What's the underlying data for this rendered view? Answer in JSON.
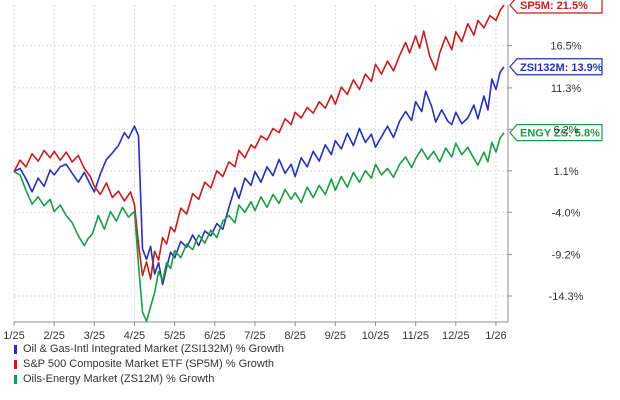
{
  "chart_data": {
    "type": "line",
    "x_tick_labels": [
      "1/25",
      "2/25",
      "3/25",
      "4/25",
      "5/25",
      "6/25",
      "7/25",
      "8/25",
      "9/25",
      "10/25",
      "11/25",
      "12/25",
      "1/26"
    ],
    "y_tick_labels": [
      "16.5%",
      "11.3%",
      "6.2%",
      "1.1%",
      "-4.0%",
      "-9.2%",
      "-14.3%"
    ],
    "y_ticks": [
      16.5,
      11.3,
      6.2,
      1.1,
      -4.0,
      -9.2,
      -14.3
    ],
    "ylim": [
      -17.5,
      21.5
    ],
    "xlim": [
      0,
      12.3
    ],
    "grid": true,
    "legend_position": "bottom-left",
    "series": [
      {
        "name": "Oil & Gas-Intl Integrated Market (ZSI132M) % Growth",
        "end_label": "ZSI132M: 13.9%",
        "color": "#2432b5",
        "values": [
          [
            0,
            1.0
          ],
          [
            0.15,
            1.4
          ],
          [
            0.3,
            0.1
          ],
          [
            0.45,
            -1.5
          ],
          [
            0.6,
            0.2
          ],
          [
            0.75,
            -0.8
          ],
          [
            0.9,
            1.2
          ],
          [
            1.0,
            0.6
          ],
          [
            1.15,
            1.6
          ],
          [
            1.3,
            1.9
          ],
          [
            1.45,
            0.8
          ],
          [
            1.6,
            -0.3
          ],
          [
            1.75,
            0.9
          ],
          [
            1.9,
            -0.6
          ],
          [
            2.0,
            -1.5
          ],
          [
            2.15,
            0.7
          ],
          [
            2.3,
            2.5
          ],
          [
            2.45,
            3.3
          ],
          [
            2.6,
            4.2
          ],
          [
            2.75,
            5.8
          ],
          [
            2.85,
            5.1
          ],
          [
            3.0,
            6.6
          ],
          [
            3.1,
            5.4
          ],
          [
            3.2,
            -8.5
          ],
          [
            3.3,
            -9.8
          ],
          [
            3.4,
            -8.2
          ],
          [
            3.5,
            -11.6
          ],
          [
            3.6,
            -10.2
          ],
          [
            3.7,
            -12.9
          ],
          [
            3.8,
            -10.8
          ],
          [
            3.9,
            -8.9
          ],
          [
            4.0,
            -9.6
          ],
          [
            4.15,
            -7.6
          ],
          [
            4.3,
            -8.3
          ],
          [
            4.45,
            -6.8
          ],
          [
            4.6,
            -8.1
          ],
          [
            4.75,
            -6.3
          ],
          [
            4.9,
            -6.9
          ],
          [
            5.05,
            -5.4
          ],
          [
            5.2,
            -6.1
          ],
          [
            5.35,
            -3.4
          ],
          [
            5.5,
            -1.0
          ],
          [
            5.6,
            -2.3
          ],
          [
            5.75,
            0.2
          ],
          [
            5.9,
            -0.7
          ],
          [
            6.0,
            1.0
          ],
          [
            6.15,
            -0.3
          ],
          [
            6.3,
            1.6
          ],
          [
            6.45,
            0.5
          ],
          [
            6.6,
            2.5
          ],
          [
            6.75,
            0.8
          ],
          [
            6.9,
            1.9
          ],
          [
            7.0,
            0.4
          ],
          [
            7.15,
            2.7
          ],
          [
            7.3,
            1.6
          ],
          [
            7.45,
            3.5
          ],
          [
            7.6,
            2.3
          ],
          [
            7.75,
            4.3
          ],
          [
            7.9,
            3.1
          ],
          [
            8.0,
            4.8
          ],
          [
            8.15,
            3.8
          ],
          [
            8.3,
            5.7
          ],
          [
            8.45,
            4.2
          ],
          [
            8.6,
            6.3
          ],
          [
            8.75,
            4.6
          ],
          [
            8.9,
            5.6
          ],
          [
            9.0,
            4.0
          ],
          [
            9.15,
            5.3
          ],
          [
            9.3,
            6.6
          ],
          [
            9.45,
            5.2
          ],
          [
            9.6,
            7.2
          ],
          [
            9.75,
            8.4
          ],
          [
            9.9,
            7.3
          ],
          [
            10.0,
            9.6
          ],
          [
            10.15,
            8.4
          ],
          [
            10.25,
            10.9
          ],
          [
            10.4,
            9.0
          ],
          [
            10.5,
            7.1
          ],
          [
            10.65,
            8.6
          ],
          [
            10.8,
            7.2
          ],
          [
            10.9,
            6.8
          ],
          [
            11.0,
            8.3
          ],
          [
            11.15,
            6.9
          ],
          [
            11.3,
            7.6
          ],
          [
            11.45,
            9.2
          ],
          [
            11.55,
            7.5
          ],
          [
            11.7,
            10.3
          ],
          [
            11.8,
            8.6
          ],
          [
            11.9,
            12.4
          ],
          [
            12.0,
            11.1
          ],
          [
            12.1,
            13.2
          ],
          [
            12.2,
            13.9
          ]
        ]
      },
      {
        "name": "S&P 500 Composite Market ETF (SP5M) % Growth",
        "end_label": "SP5M: 21.5%",
        "color": "#c51e1e",
        "values": [
          [
            0,
            1.0
          ],
          [
            0.15,
            2.4
          ],
          [
            0.3,
            1.6
          ],
          [
            0.45,
            3.2
          ],
          [
            0.6,
            2.3
          ],
          [
            0.75,
            3.6
          ],
          [
            0.9,
            2.7
          ],
          [
            1.0,
            3.5
          ],
          [
            1.15,
            2.4
          ],
          [
            1.3,
            3.4
          ],
          [
            1.45,
            2.2
          ],
          [
            1.6,
            3.0
          ],
          [
            1.75,
            1.4
          ],
          [
            1.9,
            0.4
          ],
          [
            2.0,
            -0.8
          ],
          [
            2.15,
            -1.8
          ],
          [
            2.3,
            -0.4
          ],
          [
            2.45,
            -2.2
          ],
          [
            2.6,
            -1.4
          ],
          [
            2.75,
            -2.6
          ],
          [
            2.9,
            -1.5
          ],
          [
            3.0,
            -3.1
          ],
          [
            3.1,
            -7.9
          ],
          [
            3.2,
            -11.8
          ],
          [
            3.3,
            -10.1
          ],
          [
            3.4,
            -12.2
          ],
          [
            3.5,
            -8.8
          ],
          [
            3.6,
            -9.9
          ],
          [
            3.7,
            -7.1
          ],
          [
            3.8,
            -7.9
          ],
          [
            3.9,
            -5.8
          ],
          [
            4.0,
            -6.4
          ],
          [
            4.15,
            -3.5
          ],
          [
            4.3,
            -4.2
          ],
          [
            4.45,
            -1.7
          ],
          [
            4.6,
            -2.4
          ],
          [
            4.75,
            -0.3
          ],
          [
            4.9,
            -1.0
          ],
          [
            5.05,
            1.1
          ],
          [
            5.2,
            0.4
          ],
          [
            5.35,
            2.2
          ],
          [
            5.5,
            1.6
          ],
          [
            5.6,
            3.6
          ],
          [
            5.75,
            2.7
          ],
          [
            5.9,
            4.3
          ],
          [
            6.0,
            3.9
          ],
          [
            6.15,
            5.4
          ],
          [
            6.3,
            4.9
          ],
          [
            6.45,
            6.3
          ],
          [
            6.6,
            5.8
          ],
          [
            6.75,
            7.5
          ],
          [
            6.9,
            6.8
          ],
          [
            7.0,
            8.3
          ],
          [
            7.15,
            7.6
          ],
          [
            7.3,
            8.9
          ],
          [
            7.45,
            8.2
          ],
          [
            7.6,
            9.6
          ],
          [
            7.75,
            8.8
          ],
          [
            7.9,
            10.4
          ],
          [
            8.0,
            9.3
          ],
          [
            8.15,
            11.4
          ],
          [
            8.3,
            10.5
          ],
          [
            8.45,
            12.3
          ],
          [
            8.6,
            11.1
          ],
          [
            8.75,
            13.0
          ],
          [
            8.9,
            12.1
          ],
          [
            9.0,
            14.2
          ],
          [
            9.15,
            13.0
          ],
          [
            9.3,
            14.6
          ],
          [
            9.45,
            13.4
          ],
          [
            9.6,
            15.3
          ],
          [
            9.75,
            16.9
          ],
          [
            9.85,
            15.6
          ],
          [
            10.0,
            17.7
          ],
          [
            10.1,
            16.2
          ],
          [
            10.2,
            18.3
          ],
          [
            10.35,
            15.2
          ],
          [
            10.5,
            13.5
          ],
          [
            10.6,
            15.6
          ],
          [
            10.75,
            17.6
          ],
          [
            10.9,
            16.0
          ],
          [
            11.0,
            18.2
          ],
          [
            11.15,
            17.0
          ],
          [
            11.3,
            19.2
          ],
          [
            11.45,
            17.8
          ],
          [
            11.55,
            19.6
          ],
          [
            11.7,
            18.7
          ],
          [
            11.85,
            20.2
          ],
          [
            12.0,
            19.6
          ],
          [
            12.1,
            20.8
          ],
          [
            12.2,
            21.5
          ]
        ]
      },
      {
        "name": "Oils-Energy Market (ZS12M) % Growth",
        "end_label": "ENGY ZS: 5.8%",
        "color": "#1f9a45",
        "values": [
          [
            0,
            1.0
          ],
          [
            0.15,
            0.6
          ],
          [
            0.3,
            -1.3
          ],
          [
            0.45,
            -3.0
          ],
          [
            0.6,
            -2.1
          ],
          [
            0.75,
            -3.2
          ],
          [
            0.9,
            -2.4
          ],
          [
            1.0,
            -3.9
          ],
          [
            1.15,
            -3.1
          ],
          [
            1.3,
            -4.4
          ],
          [
            1.45,
            -5.3
          ],
          [
            1.6,
            -6.9
          ],
          [
            1.75,
            -8.1
          ],
          [
            1.85,
            -7.2
          ],
          [
            1.95,
            -6.7
          ],
          [
            2.1,
            -4.4
          ],
          [
            2.25,
            -6.1
          ],
          [
            2.4,
            -3.9
          ],
          [
            2.55,
            -5.1
          ],
          [
            2.7,
            -3.4
          ],
          [
            2.85,
            -4.6
          ],
          [
            3.0,
            -3.9
          ],
          [
            3.1,
            -10.5
          ],
          [
            3.2,
            -16.3
          ],
          [
            3.3,
            -17.4
          ],
          [
            3.4,
            -15.6
          ],
          [
            3.5,
            -13.9
          ],
          [
            3.6,
            -11.3
          ],
          [
            3.7,
            -12.4
          ],
          [
            3.8,
            -10.2
          ],
          [
            3.9,
            -10.9
          ],
          [
            4.0,
            -8.7
          ],
          [
            4.15,
            -9.6
          ],
          [
            4.3,
            -7.9
          ],
          [
            4.45,
            -8.6
          ],
          [
            4.6,
            -6.8
          ],
          [
            4.75,
            -7.8
          ],
          [
            4.9,
            -6.2
          ],
          [
            5.05,
            -7.1
          ],
          [
            5.2,
            -5.1
          ],
          [
            5.35,
            -4.4
          ],
          [
            5.5,
            -5.3
          ],
          [
            5.6,
            -3.1
          ],
          [
            5.75,
            -4.0
          ],
          [
            5.9,
            -2.7
          ],
          [
            6.0,
            -3.8
          ],
          [
            6.15,
            -2.1
          ],
          [
            6.3,
            -3.4
          ],
          [
            6.45,
            -1.8
          ],
          [
            6.6,
            -2.9
          ],
          [
            6.75,
            -1.2
          ],
          [
            6.9,
            -2.4
          ],
          [
            7.0,
            -1.6
          ],
          [
            7.15,
            -2.8
          ],
          [
            7.3,
            -0.9
          ],
          [
            7.45,
            -2.2
          ],
          [
            7.6,
            -0.7
          ],
          [
            7.75,
            -1.8
          ],
          [
            7.9,
            0.1
          ],
          [
            8.0,
            -1.3
          ],
          [
            8.15,
            0.4
          ],
          [
            8.3,
            -0.9
          ],
          [
            8.45,
            0.9
          ],
          [
            8.6,
            -0.3
          ],
          [
            8.75,
            1.1
          ],
          [
            8.9,
            0.2
          ],
          [
            9.0,
            1.9
          ],
          [
            9.15,
            0.6
          ],
          [
            9.3,
            1.4
          ],
          [
            9.45,
            0.3
          ],
          [
            9.6,
            1.9
          ],
          [
            9.75,
            2.8
          ],
          [
            9.9,
            1.5
          ],
          [
            10.0,
            2.6
          ],
          [
            10.15,
            3.8
          ],
          [
            10.3,
            2.5
          ],
          [
            10.45,
            3.5
          ],
          [
            10.6,
            2.2
          ],
          [
            10.75,
            3.9
          ],
          [
            10.9,
            2.8
          ],
          [
            11.0,
            4.5
          ],
          [
            11.15,
            3.1
          ],
          [
            11.3,
            4.0
          ],
          [
            11.45,
            2.6
          ],
          [
            11.55,
            1.8
          ],
          [
            11.7,
            3.4
          ],
          [
            11.8,
            2.2
          ],
          [
            11.9,
            4.6
          ],
          [
            12.0,
            3.4
          ],
          [
            12.1,
            5.1
          ],
          [
            12.2,
            5.8
          ]
        ]
      }
    ]
  },
  "colors": {
    "grid": "#d6dbe0",
    "axis": "#8a8f96",
    "tick_text": "#333333"
  }
}
